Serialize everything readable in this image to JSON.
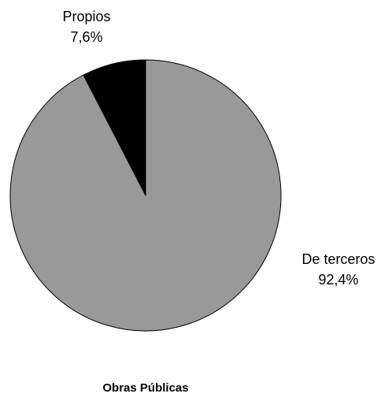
{
  "chart_data": {
    "type": "pie",
    "title": "Obras Públicas",
    "categories": [
      "Propios",
      "De terceros"
    ],
    "values": [
      7.6,
      92.4
    ],
    "value_labels": [
      "7,6%",
      "92,4%"
    ],
    "colors": [
      "#000000",
      "#999999"
    ]
  }
}
